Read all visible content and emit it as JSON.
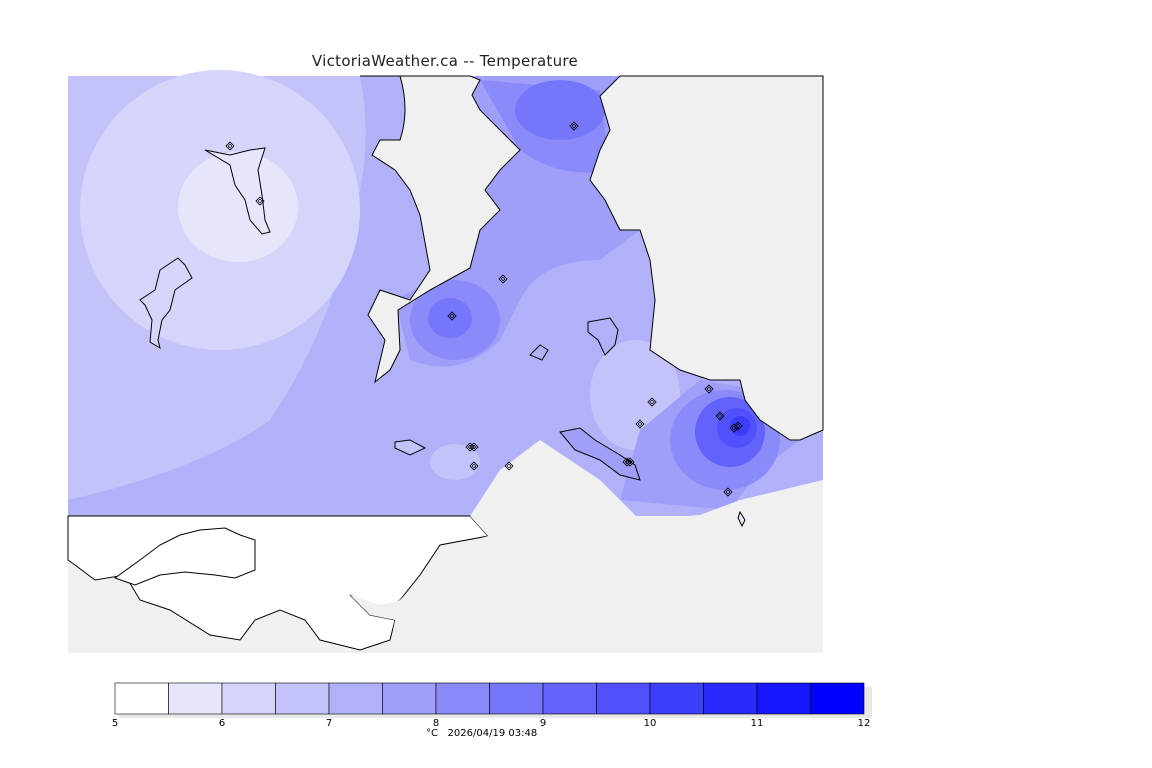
{
  "title": "VictoriaWeather.ca -- Temperature",
  "units": "°C",
  "timestamp": "2026/04/19 03:48",
  "colorbar": {
    "ticks": [
      "5",
      "6",
      "7",
      "8",
      "9",
      "10",
      "11",
      "12"
    ],
    "min": 5,
    "max": 12,
    "colors": [
      "#ffffff",
      "#e6e6fb",
      "#d5d5fb",
      "#c3c3fa",
      "#b1b1fa",
      "#9f9ffa",
      "#8a8afa",
      "#7676fb",
      "#6363fb",
      "#5050fc",
      "#3d3dfc",
      "#2a2afd",
      "#1717fe",
      "#0000ff"
    ]
  },
  "stations": [
    {
      "id": "s1",
      "temp": 6.2
    },
    {
      "id": "s2",
      "temp": 5.8
    },
    {
      "id": "s3",
      "temp": 8.6
    },
    {
      "id": "s4",
      "temp": 8.9
    },
    {
      "id": "s5",
      "temp": 8.4
    },
    {
      "id": "s6",
      "temp": 7.6
    },
    {
      "id": "s7",
      "temp": 6.6
    },
    {
      "id": "s8",
      "temp": 6.6
    },
    {
      "id": "s9",
      "temp": 8.2
    },
    {
      "id": "s10",
      "temp": 9.8
    },
    {
      "id": "s11",
      "temp": 10.2
    },
    {
      "id": "s12",
      "temp": 10.8
    },
    {
      "id": "s13",
      "temp": 10.6
    },
    {
      "id": "s14",
      "temp": 8.4
    },
    {
      "id": "s15",
      "temp": 6.6
    },
    {
      "id": "s16",
      "temp": 6.6
    },
    {
      "id": "s17",
      "temp": 8.0
    },
    {
      "id": "s18",
      "temp": 9.2
    }
  ]
}
